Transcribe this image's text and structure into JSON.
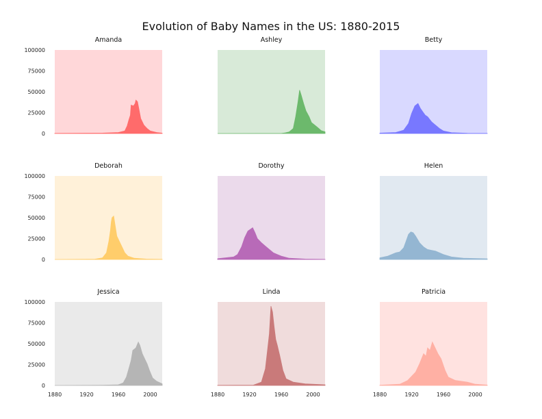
{
  "chart_data": {
    "type": "area",
    "title": "Evolution of Baby Names in the US: 1880-2015",
    "xlim": [
      1880,
      2015
    ],
    "ylim": [
      0,
      100000
    ],
    "x_ticks": [
      1880,
      1920,
      1960,
      2000
    ],
    "y_ticks": [
      0,
      25000,
      50000,
      75000,
      100000
    ],
    "panels": [
      {
        "name": "Amanda",
        "line_color": "#ff6b6b",
        "bg_color": "#ffd7d9",
        "points": [
          [
            1880,
            200
          ],
          [
            1940,
            500
          ],
          [
            1960,
            1200
          ],
          [
            1968,
            3000
          ],
          [
            1971,
            9000
          ],
          [
            1973,
            16000
          ],
          [
            1975,
            22000
          ],
          [
            1976,
            34000
          ],
          [
            1979,
            33000
          ],
          [
            1981,
            36000
          ],
          [
            1982,
            40000
          ],
          [
            1984,
            38000
          ],
          [
            1986,
            28000
          ],
          [
            1988,
            18000
          ],
          [
            1992,
            10000
          ],
          [
            1996,
            6000
          ],
          [
            2000,
            3000
          ],
          [
            2008,
            1200
          ],
          [
            2015,
            400
          ]
        ]
      },
      {
        "name": "Ashley",
        "line_color": "#6cb96c",
        "bg_color": "#d8ead8",
        "points": [
          [
            1880,
            0
          ],
          [
            1960,
            100
          ],
          [
            1965,
            800
          ],
          [
            1970,
            2000
          ],
          [
            1975,
            6000
          ],
          [
            1978,
            20000
          ],
          [
            1981,
            38000
          ],
          [
            1983,
            52000
          ],
          [
            1985,
            46000
          ],
          [
            1988,
            36000
          ],
          [
            1991,
            27000
          ],
          [
            1995,
            20000
          ],
          [
            1998,
            13000
          ],
          [
            2002,
            10000
          ],
          [
            2006,
            7000
          ],
          [
            2010,
            3500
          ],
          [
            2015,
            2000
          ]
        ]
      },
      {
        "name": "Betty",
        "line_color": "#7878ff",
        "bg_color": "#d9d9ff",
        "points": [
          [
            1880,
            500
          ],
          [
            1900,
            1200
          ],
          [
            1910,
            4000
          ],
          [
            1916,
            12000
          ],
          [
            1920,
            24000
          ],
          [
            1924,
            33000
          ],
          [
            1928,
            36000
          ],
          [
            1931,
            30000
          ],
          [
            1934,
            26000
          ],
          [
            1937,
            22000
          ],
          [
            1940,
            20000
          ],
          [
            1945,
            14000
          ],
          [
            1950,
            10000
          ],
          [
            1955,
            6000
          ],
          [
            1960,
            3000
          ],
          [
            1970,
            1000
          ],
          [
            1990,
            300
          ],
          [
            2015,
            150
          ]
        ]
      },
      {
        "name": "Deborah",
        "line_color": "#ffcd6b",
        "bg_color": "#fff1d9",
        "points": [
          [
            1880,
            0
          ],
          [
            1930,
            300
          ],
          [
            1940,
            2000
          ],
          [
            1945,
            8000
          ],
          [
            1948,
            22000
          ],
          [
            1950,
            35000
          ],
          [
            1951,
            45000
          ],
          [
            1952,
            50000
          ],
          [
            1954,
            52000
          ],
          [
            1956,
            40000
          ],
          [
            1958,
            28000
          ],
          [
            1961,
            22000
          ],
          [
            1965,
            14000
          ],
          [
            1968,
            8000
          ],
          [
            1972,
            4000
          ],
          [
            1980,
            1500
          ],
          [
            1995,
            500
          ],
          [
            2015,
            200
          ]
        ]
      },
      {
        "name": "Dorothy",
        "line_color": "#b86ab8",
        "bg_color": "#ebdaeb",
        "points": [
          [
            1880,
            1000
          ],
          [
            1900,
            3000
          ],
          [
            1905,
            6000
          ],
          [
            1910,
            15000
          ],
          [
            1914,
            26000
          ],
          [
            1918,
            34000
          ],
          [
            1921,
            36000
          ],
          [
            1924,
            38000
          ],
          [
            1927,
            32000
          ],
          [
            1930,
            25000
          ],
          [
            1935,
            20000
          ],
          [
            1940,
            16000
          ],
          [
            1945,
            12000
          ],
          [
            1950,
            8000
          ],
          [
            1955,
            6000
          ],
          [
            1960,
            4000
          ],
          [
            1970,
            1500
          ],
          [
            1990,
            500
          ],
          [
            2015,
            200
          ]
        ]
      },
      {
        "name": "Helen",
        "line_color": "#94b6d2",
        "bg_color": "#e1e9f1",
        "points": [
          [
            1880,
            2000
          ],
          [
            1890,
            4000
          ],
          [
            1900,
            8000
          ],
          [
            1905,
            9000
          ],
          [
            1910,
            14000
          ],
          [
            1913,
            22000
          ],
          [
            1916,
            30000
          ],
          [
            1919,
            33000
          ],
          [
            1922,
            32000
          ],
          [
            1925,
            28000
          ],
          [
            1930,
            20000
          ],
          [
            1935,
            15000
          ],
          [
            1940,
            12000
          ],
          [
            1945,
            11000
          ],
          [
            1950,
            10000
          ],
          [
            1960,
            6000
          ],
          [
            1970,
            3000
          ],
          [
            1985,
            1500
          ],
          [
            2015,
            800
          ]
        ]
      },
      {
        "name": "Jessica",
        "line_color": "#b5b5b5",
        "bg_color": "#eaeaea",
        "points": [
          [
            1880,
            0
          ],
          [
            1940,
            300
          ],
          [
            1960,
            800
          ],
          [
            1966,
            3000
          ],
          [
            1970,
            10000
          ],
          [
            1973,
            20000
          ],
          [
            1976,
            30000
          ],
          [
            1978,
            42000
          ],
          [
            1982,
            45000
          ],
          [
            1985,
            52000
          ],
          [
            1987,
            48000
          ],
          [
            1990,
            38000
          ],
          [
            1993,
            32000
          ],
          [
            1996,
            26000
          ],
          [
            1999,
            18000
          ],
          [
            2003,
            9000
          ],
          [
            2008,
            5000
          ],
          [
            2015,
            2000
          ]
        ]
      },
      {
        "name": "Linda",
        "line_color": "#c97a7a",
        "bg_color": "#f0dcdc",
        "points": [
          [
            1880,
            200
          ],
          [
            1925,
            400
          ],
          [
            1935,
            4000
          ],
          [
            1940,
            20000
          ],
          [
            1943,
            45000
          ],
          [
            1945,
            62000
          ],
          [
            1947,
            95000
          ],
          [
            1949,
            88000
          ],
          [
            1951,
            70000
          ],
          [
            1953,
            55000
          ],
          [
            1955,
            48000
          ],
          [
            1958,
            36000
          ],
          [
            1962,
            18000
          ],
          [
            1966,
            8000
          ],
          [
            1975,
            4000
          ],
          [
            1990,
            2000
          ],
          [
            2015,
            800
          ]
        ]
      },
      {
        "name": "Patricia",
        "line_color": "#ffb0a4",
        "bg_color": "#ffe2e0",
        "points": [
          [
            1880,
            300
          ],
          [
            1905,
            1500
          ],
          [
            1915,
            6000
          ],
          [
            1925,
            16000
          ],
          [
            1930,
            26000
          ],
          [
            1935,
            38000
          ],
          [
            1938,
            35000
          ],
          [
            1940,
            45000
          ],
          [
            1943,
            42000
          ],
          [
            1946,
            52000
          ],
          [
            1950,
            44000
          ],
          [
            1953,
            38000
          ],
          [
            1957,
            32000
          ],
          [
            1962,
            18000
          ],
          [
            1966,
            10000
          ],
          [
            1975,
            6000
          ],
          [
            1990,
            4000
          ],
          [
            2000,
            1500
          ],
          [
            2015,
            500
          ]
        ]
      }
    ]
  }
}
